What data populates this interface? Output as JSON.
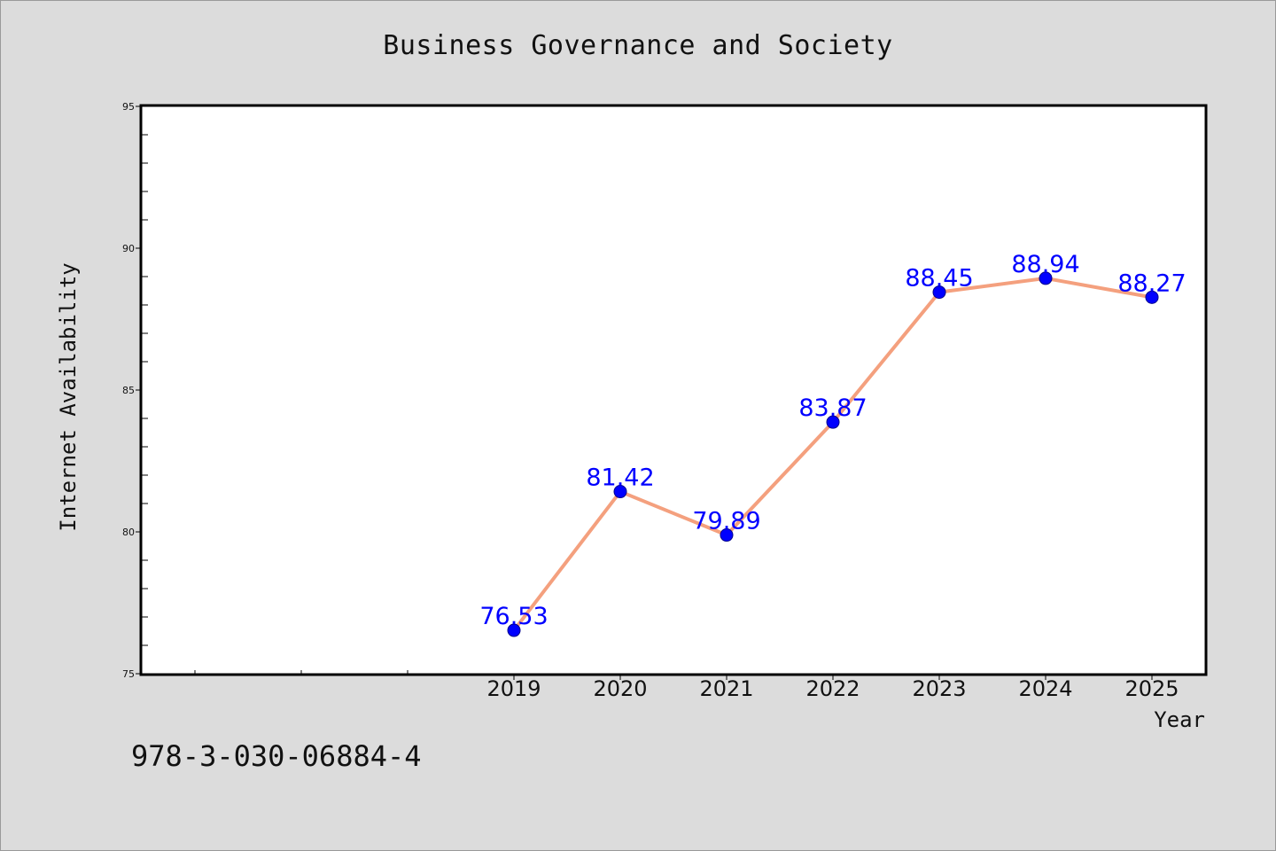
{
  "chart_data": {
    "type": "line",
    "title": "Business Governance and Society",
    "xlabel": "Year",
    "ylabel": "Internet Availability",
    "categories": [
      "2019",
      "2020",
      "2021",
      "2022",
      "2023",
      "2024",
      "2025"
    ],
    "x_range": [
      2015.5,
      2025.5
    ],
    "ylim": [
      75,
      95
    ],
    "y_ticks": [
      75,
      80,
      85,
      90,
      95
    ],
    "grid": false,
    "series": [
      {
        "values": [
          76.53,
          81.42,
          79.89,
          83.87,
          88.45,
          88.94,
          88.27
        ],
        "line_color": "#f4a07e",
        "marker_color": "#0000ff",
        "label_color": "#0000ff"
      }
    ]
  },
  "footer": {
    "identifier": "978-3-030-06884-4"
  },
  "colors": {
    "background": "#dcdcdc",
    "plot_background": "#ffffff"
  }
}
